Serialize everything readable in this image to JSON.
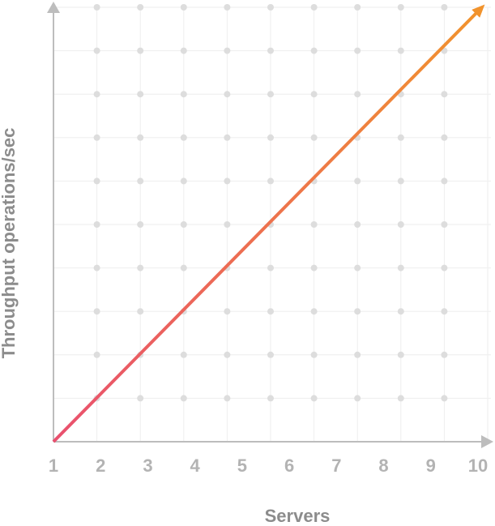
{
  "chart_data": {
    "type": "line",
    "x_label": "Servers",
    "y_label": "Throughput operations/sec",
    "x": [
      1,
      10
    ],
    "series": [
      {
        "values": [
          0,
          10
        ],
        "colors": [
          "#e9506f",
          "#f1932d"
        ]
      }
    ],
    "xlim": [
      1,
      10
    ],
    "ylim": [
      0,
      10
    ],
    "xticks": [
      1,
      2,
      3,
      4,
      5,
      6,
      7,
      8,
      9,
      10
    ],
    "grid": true
  }
}
